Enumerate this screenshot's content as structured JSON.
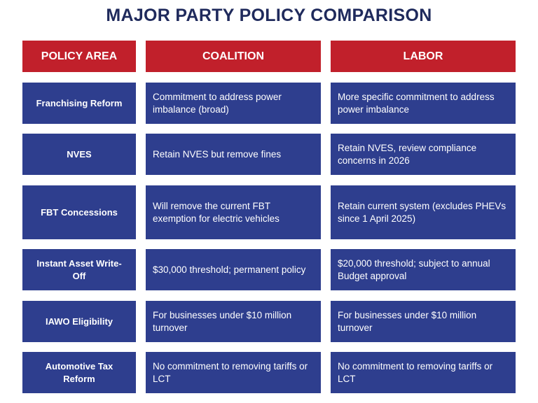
{
  "title": "MAJOR PARTY POLICY COMPARISON",
  "table": {
    "headers": [
      "POLICY AREA",
      "COALITION",
      "LABOR"
    ],
    "rows": [
      [
        "Franchising Reform",
        "Commitment to address power imbalance (broad)",
        "More specific commitment to address power imbalance"
      ],
      [
        "NVES",
        "Retain NVES but remove fines",
        "Retain NVES, review compliance concerns in 2026"
      ],
      [
        "FBT Concessions",
        "Will remove the current FBT exemption for electric vehicles",
        "Retain current system (excludes PHEVs since 1 April 2025)"
      ],
      [
        "Instant Asset Write-Off",
        "$30,000 threshold; permanent policy",
        "$20,000 threshold; subject to annual Budget approval"
      ],
      [
        "IAWO Eligibility",
        "For businesses under $10 million turnover",
        "For businesses under $10 million turnover"
      ],
      [
        "Automotive Tax Reform",
        "No commitment to removing tariffs or LCT",
        "No commitment to removing tariffs or LCT"
      ]
    ]
  }
}
